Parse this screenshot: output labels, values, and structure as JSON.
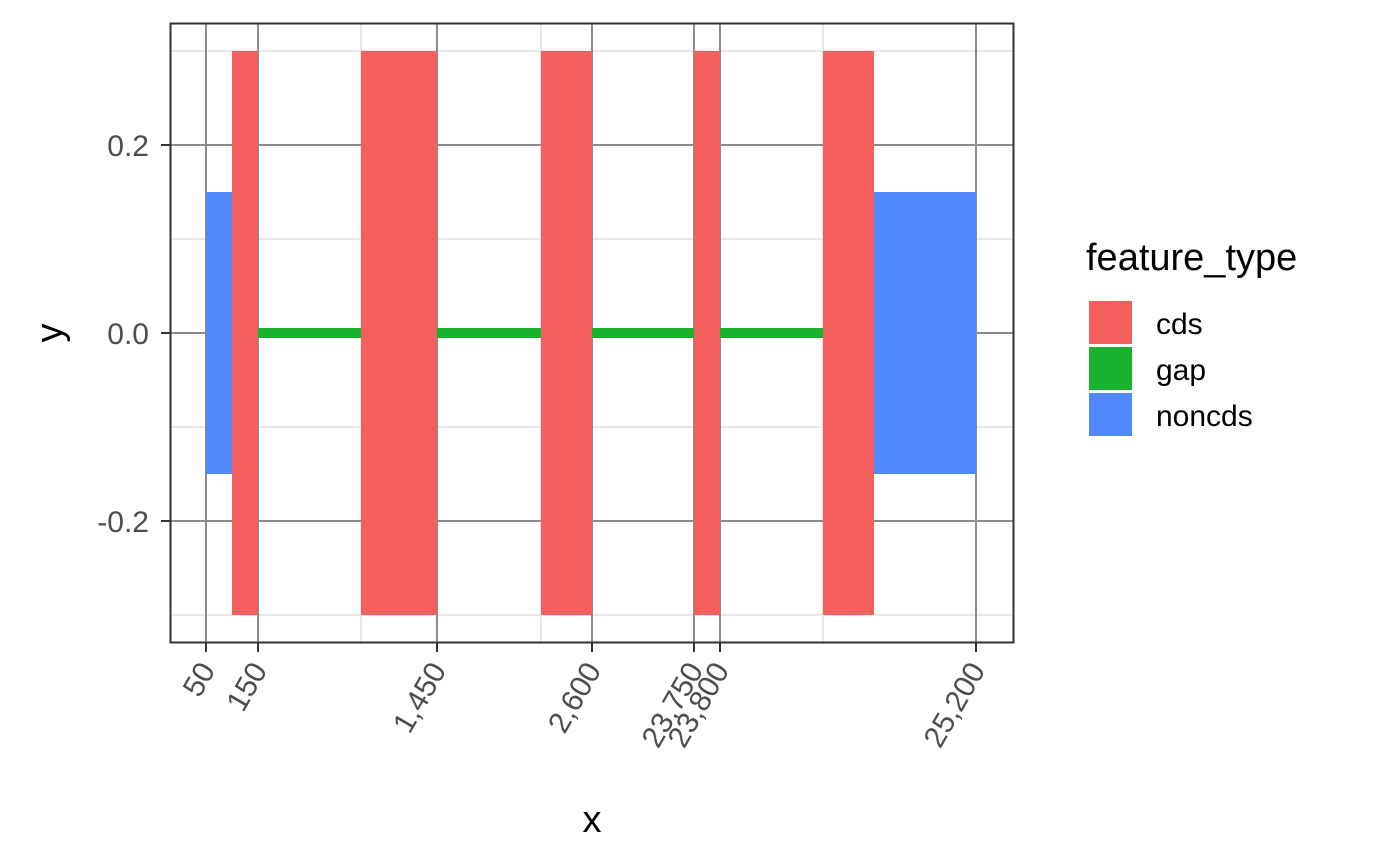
{
  "chart_data": {
    "type": "bar",
    "xlabel": "x",
    "ylabel": "y",
    "x_scale": "piecewise (ticks at feature breakpoints)",
    "x_ticks": [
      50,
      150,
      1450,
      2600,
      23750,
      23800,
      25200
    ],
    "x_tick_labels": [
      "50",
      "150",
      "1,450",
      "2,600",
      "23,750",
      "23,800",
      "25,200"
    ],
    "y_ticks": [
      -0.2,
      0.0,
      0.2
    ],
    "y_tick_labels": [
      "-0.2",
      "0.0",
      "0.2"
    ],
    "ylim": [
      -0.33,
      0.33
    ],
    "grid": true,
    "theme": "bw",
    "legend": {
      "title": "feature_type",
      "position": "right",
      "entries": [
        {
          "label": "cds",
          "color": "#F8766D"
        },
        {
          "label": "gap",
          "color": "#00BA38"
        },
        {
          "label": "noncds",
          "color": "#619CFF"
        }
      ]
    },
    "colors": {
      "cds": "#F35F5C",
      "gap": "#18B22F",
      "noncds": "#5089FD"
    },
    "segments": [
      {
        "feature_type": "noncds",
        "x_start": 50,
        "x_end": 100,
        "y_min": -0.15,
        "y_max": 0.15
      },
      {
        "feature_type": "cds",
        "x_start": 100,
        "x_end": 150,
        "y_min": -0.3,
        "y_max": 0.3
      },
      {
        "feature_type": "gap",
        "x_start": 150,
        "x_end": 1300,
        "y": 0.0
      },
      {
        "feature_type": "cds",
        "x_start": 1300,
        "x_end": 1450,
        "y_min": -0.3,
        "y_max": 0.3
      },
      {
        "feature_type": "gap",
        "x_start": 1450,
        "x_end": 2500,
        "y": 0.0
      },
      {
        "feature_type": "cds",
        "x_start": 2500,
        "x_end": 2600,
        "y_min": -0.3,
        "y_max": 0.3
      },
      {
        "feature_type": "gap",
        "x_start": 2600,
        "x_end": 23750,
        "y": 0.0
      },
      {
        "feature_type": "cds",
        "x_start": 23750,
        "x_end": 23800,
        "y_min": -0.3,
        "y_max": 0.3
      },
      {
        "feature_type": "gap",
        "x_start": 23800,
        "x_end": 24000,
        "y": 0.0
      },
      {
        "feature_type": "cds",
        "x_start": 24000,
        "x_end": 24100,
        "y_min": -0.3,
        "y_max": 0.3
      },
      {
        "feature_type": "noncds",
        "x_start": 24100,
        "x_end": 25200,
        "y_min": -0.15,
        "y_max": 0.15
      }
    ]
  }
}
